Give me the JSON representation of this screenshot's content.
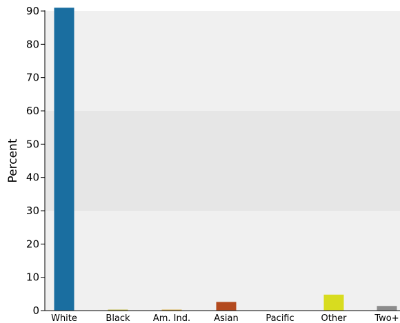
{
  "chart_data": {
    "type": "bar",
    "title": "",
    "xlabel": "",
    "ylabel": "Percent",
    "ylim": [
      0,
      90
    ],
    "yticks": [
      0,
      10,
      20,
      30,
      40,
      50,
      60,
      70,
      80,
      90
    ],
    "categories": [
      "White",
      "Black",
      "Am. Ind.",
      "Asian",
      "Pacific",
      "Other",
      "Two+"
    ],
    "values": [
      91.0,
      0.3,
      0.3,
      2.6,
      0.0,
      4.8,
      1.4
    ],
    "colors": [
      "#1a6ea0",
      "#b9b23a",
      "#d4a83a",
      "#b34a1e",
      "#7a4b8c",
      "#d8dc1f",
      "#8c8c8c"
    ],
    "bands": [
      {
        "from": 0,
        "to": 30,
        "color": "#f0f0f0"
      },
      {
        "from": 30,
        "to": 60,
        "color": "#e6e6e6"
      },
      {
        "from": 60,
        "to": 90,
        "color": "#f0f0f0"
      }
    ],
    "grid": false,
    "legend": "none"
  }
}
